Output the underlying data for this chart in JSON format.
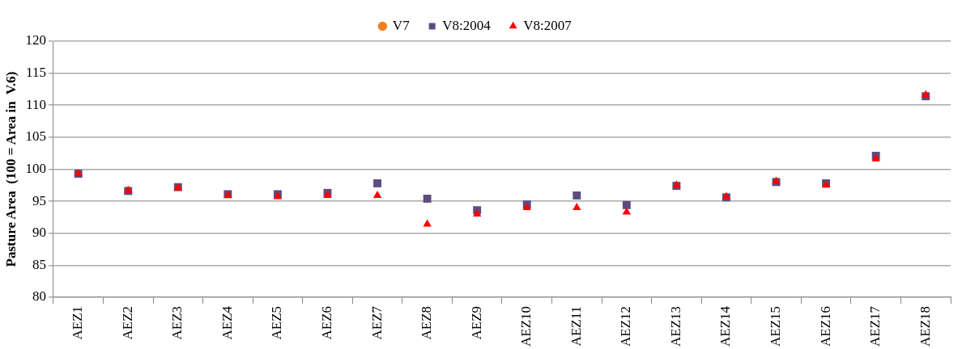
{
  "chart_data": {
    "type": "scatter",
    "ylabel": "Pasture Area  (100 = Area in  V.6)",
    "categories": [
      "AEZ1",
      "AEZ2",
      "AEZ3",
      "AEZ4",
      "AEZ5",
      "AEZ6",
      "AEZ7",
      "AEZ8",
      "AEZ9",
      "AEZ10",
      "AEZ11",
      "AEZ12",
      "AEZ13",
      "AEZ14",
      "AEZ15",
      "AEZ16",
      "AEZ17",
      "AEZ18"
    ],
    "ylim": [
      80,
      120
    ],
    "yticks": [
      80,
      85,
      90,
      95,
      100,
      105,
      110,
      115,
      120
    ],
    "grid": "y",
    "legend": "top",
    "series": [
      {
        "name": "V7",
        "color": "#f07f20",
        "marker": "circle",
        "values": [
          null,
          null,
          null,
          null,
          null,
          null,
          null,
          null,
          null,
          null,
          null,
          null,
          null,
          null,
          null,
          null,
          null,
          null
        ]
      },
      {
        "name": "V8:2004",
        "color": "#5f4b7f",
        "marker": "square",
        "values": [
          99.3,
          96.6,
          97.2,
          96.1,
          96.1,
          96.3,
          97.8,
          95.4,
          93.6,
          94.5,
          95.9,
          94.4,
          97.4,
          95.6,
          98.0,
          97.8,
          102.1,
          111.4
        ]
      },
      {
        "name": "V8:2007",
        "color": "#ff0000",
        "marker": "triangle",
        "values": [
          99.3,
          96.7,
          97.1,
          95.9,
          95.7,
          95.9,
          95.9,
          91.4,
          93.0,
          94.0,
          94.0,
          93.3,
          97.5,
          95.7,
          98.1,
          97.5,
          101.6,
          111.6
        ]
      }
    ]
  }
}
